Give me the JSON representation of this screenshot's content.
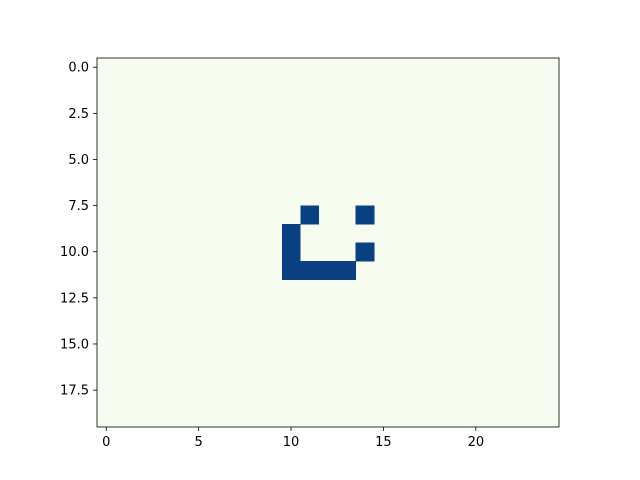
{
  "chart_data": {
    "type": "heatmap",
    "title": "",
    "xlabel": "",
    "ylabel": "",
    "n_rows": 20,
    "n_cols": 25,
    "xlim": [
      -0.5,
      24.5
    ],
    "ylim": [
      19.5,
      -0.5
    ],
    "y_inverted": true,
    "colormap": "GnBu",
    "grid": false,
    "legend": "none",
    "background_value": 0,
    "background_color": "#f7fcf0",
    "filled_color": "#084081",
    "x_ticks": [
      0,
      5,
      10,
      15,
      20
    ],
    "x_tick_labels": [
      "0",
      "5",
      "10",
      "15",
      "20"
    ],
    "y_ticks": [
      0,
      2.5,
      5,
      7.5,
      10,
      12.5,
      15,
      17.5
    ],
    "y_tick_labels": [
      "0.0",
      "2.5",
      "5.0",
      "7.5",
      "10.0",
      "12.5",
      "15.0",
      "17.5"
    ],
    "filled_cells": [
      {
        "row": 8,
        "col": 11,
        "value": 1
      },
      {
        "row": 8,
        "col": 14,
        "value": 1
      },
      {
        "row": 9,
        "col": 10,
        "value": 1
      },
      {
        "row": 10,
        "col": 10,
        "value": 1
      },
      {
        "row": 10,
        "col": 14,
        "value": 1
      },
      {
        "row": 11,
        "col": 10,
        "value": 1
      },
      {
        "row": 11,
        "col": 11,
        "value": 1
      },
      {
        "row": 11,
        "col": 12,
        "value": 1
      },
      {
        "row": 11,
        "col": 13,
        "value": 1
      }
    ]
  }
}
